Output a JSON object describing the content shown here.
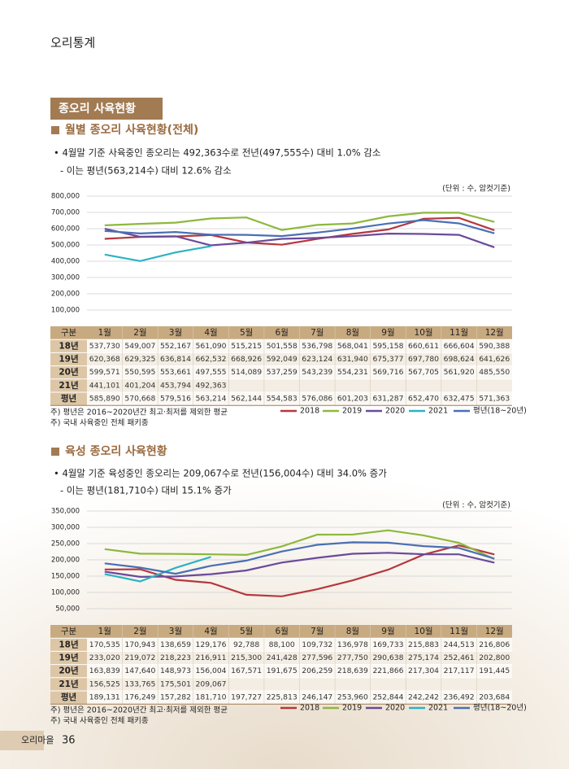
{
  "header": {
    "title": "오리통계"
  },
  "section_title": "종오리 사육현황",
  "chart_data": [
    {
      "type": "line",
      "title": "월별 종오리 사육현황(전체)",
      "bullets": [
        "• 4월말 기준 사육중인 종오리는 492,363수로  전년(497,555수) 대비 1.0% 감소",
        "- 이는 평년(563,214수) 대비 12.6% 감소"
      ],
      "unit_note": "(단위 : 수, 암컷기준)",
      "categories": [
        "1월",
        "2월",
        "3월",
        "4월",
        "5월",
        "6월",
        "7월",
        "8월",
        "9월",
        "10월",
        "11월",
        "12월"
      ],
      "series": [
        {
          "name": "2018",
          "color": "#b5383d",
          "values": [
            537730,
            549007,
            552167,
            561090,
            515215,
            501558,
            536798,
            568041,
            595158,
            660611,
            666604,
            590388
          ],
          "value_labels": [
            "537,730",
            "549,007",
            "552,167",
            "561,090",
            "515,215",
            "501,558",
            "536,798",
            "568,041",
            "595,158",
            "660,611",
            "666,604",
            "590,388"
          ]
        },
        {
          "name": "2019",
          "color": "#8db83e",
          "values": [
            620368,
            629325,
            636814,
            662532,
            668926,
            592049,
            623124,
            631940,
            675377,
            697780,
            698624,
            641626
          ],
          "value_labels": [
            "620,368",
            "629,325",
            "636,814",
            "662,532",
            "668,926",
            "592,049",
            "623,124",
            "631,940",
            "675,377",
            "697,780",
            "698,624",
            "641,626"
          ]
        },
        {
          "name": "2020",
          "color": "#6a4a9a",
          "values": [
            599571,
            550595,
            553661,
            497555,
            514089,
            537259,
            543239,
            554231,
            569716,
            567705,
            561920,
            485550
          ],
          "value_labels": [
            "599,571",
            "550,595",
            "553,661",
            "497,555",
            "514,089",
            "537,259",
            "543,239",
            "554,231",
            "569,716",
            "567,705",
            "561,920",
            "485,550"
          ]
        },
        {
          "name": "2021",
          "color": "#2bb3c4",
          "values": [
            441101,
            401204,
            453794,
            492363,
            null,
            null,
            null,
            null,
            null,
            null,
            null,
            null
          ],
          "value_labels": [
            "441,101",
            "401,204",
            "453,794",
            "492,363",
            null,
            null,
            null,
            null,
            null,
            null,
            null,
            null
          ]
        },
        {
          "name": "평년(18~20년)",
          "color": "#4a6fb5",
          "values": [
            585890,
            570668,
            579516,
            563214,
            562144,
            554583,
            576086,
            601203,
            631287,
            652470,
            632475,
            571363
          ],
          "value_labels": [
            "585,890",
            "570,668",
            "579,516",
            "563,214",
            "562,144",
            "554,583",
            "576,086",
            "601,203",
            "631,287",
            "652,470",
            "632,475",
            "571,363"
          ]
        }
      ],
      "ylim": [
        100000,
        800000
      ],
      "yticks": [
        {
          "value": 100000,
          "label": "100,000"
        },
        {
          "value": 200000,
          "label": "200,000"
        },
        {
          "value": 300000,
          "label": "300,000"
        },
        {
          "value": 400000,
          "label": "400,000"
        },
        {
          "value": 500000,
          "label": "500,000"
        },
        {
          "value": 600000,
          "label": "600,000"
        },
        {
          "value": 700000,
          "label": "700,000"
        },
        {
          "value": 800000,
          "label": "800,000"
        }
      ],
      "grid": true,
      "legend": "bottom-right",
      "table": {
        "corner": "구분",
        "row_labels": [
          "18년",
          "19년",
          "20년",
          "21년",
          "평년"
        ]
      },
      "notes": [
        "주) 평년은 2016~2020년간 최고·최저를 제외한 평균",
        "주) 국내 사육중인 전체 패키종"
      ]
    },
    {
      "type": "line",
      "title": "육성 종오리 사육현황",
      "bullets": [
        "• 4월말 기준 육성중인 종오리는 209,067수로 전년(156,004수) 대비 34.0% 증가",
        "- 이는 평년(181,710수) 대비 15.1% 증가"
      ],
      "unit_note": "(단위 : 수, 암컷기준)",
      "categories": [
        "1월",
        "2월",
        "3월",
        "4월",
        "5월",
        "6월",
        "7월",
        "8월",
        "9월",
        "10월",
        "11월",
        "12월"
      ],
      "series": [
        {
          "name": "2018",
          "color": "#b5383d",
          "values": [
            170535,
            170943,
            138659,
            129176,
            92788,
            88100,
            109732,
            136978,
            169733,
            215883,
            244513,
            216806
          ],
          "value_labels": [
            "170,535",
            "170,943",
            "138,659",
            "129,176",
            "92,788",
            "88,100",
            "109,732",
            "136,978",
            "169,733",
            "215,883",
            "244,513",
            "216,806"
          ]
        },
        {
          "name": "2019",
          "color": "#8db83e",
          "values": [
            233020,
            219072,
            218223,
            216911,
            215300,
            241428,
            277596,
            277750,
            290638,
            275174,
            252461,
            202800
          ],
          "value_labels": [
            "233,020",
            "219,072",
            "218,223",
            "216,911",
            "215,300",
            "241,428",
            "277,596",
            "277,750",
            "290,638",
            "275,174",
            "252,461",
            "202,800"
          ]
        },
        {
          "name": "2020",
          "color": "#6a4a9a",
          "values": [
            163839,
            147640,
            148973,
            156004,
            167571,
            191675,
            206259,
            218639,
            221866,
            217304,
            217117,
            191445
          ],
          "value_labels": [
            "163,839",
            "147,640",
            "148,973",
            "156,004",
            "167,571",
            "191,675",
            "206,259",
            "218,639",
            "221,866",
            "217,304",
            "217,117",
            "191,445"
          ]
        },
        {
          "name": "2021",
          "color": "#2bb3c4",
          "values": [
            156525,
            133765,
            175501,
            209067,
            null,
            null,
            null,
            null,
            null,
            null,
            null,
            null
          ],
          "value_labels": [
            "156,525",
            "133,765",
            "175,501",
            "209,067",
            null,
            null,
            null,
            null,
            null,
            null,
            null,
            null
          ]
        },
        {
          "name": "평년(18~20년)",
          "color": "#4a6fb5",
          "values": [
            189131,
            176249,
            157282,
            181710,
            197727,
            225813,
            246147,
            253960,
            252844,
            242242,
            236492,
            203684
          ],
          "value_labels": [
            "189,131",
            "176,249",
            "157,282",
            "181,710",
            "197,727",
            "225,813",
            "246,147",
            "253,960",
            "252,844",
            "242,242",
            "236,492",
            "203,684"
          ]
        }
      ],
      "ylim": [
        50000,
        350000
      ],
      "yticks": [
        {
          "value": 50000,
          "label": "50,000"
        },
        {
          "value": 100000,
          "label": "100,000"
        },
        {
          "value": 150000,
          "label": "150,000"
        },
        {
          "value": 200000,
          "label": "200,000"
        },
        {
          "value": 250000,
          "label": "250,000"
        },
        {
          "value": 300000,
          "label": "300,000"
        },
        {
          "value": 350000,
          "label": "350,000"
        }
      ],
      "grid": true,
      "legend": "bottom-right",
      "table": {
        "corner": "구분",
        "row_labels": [
          "18년",
          "19년",
          "20년",
          "21년",
          "평년"
        ]
      },
      "notes": [
        "주) 평년은 2016~2020년간 최고·최저를 제외한 평균",
        "주) 국내 사육중인 전체 패키종"
      ]
    }
  ],
  "footer": {
    "publication": "오리마을",
    "page": 36
  }
}
